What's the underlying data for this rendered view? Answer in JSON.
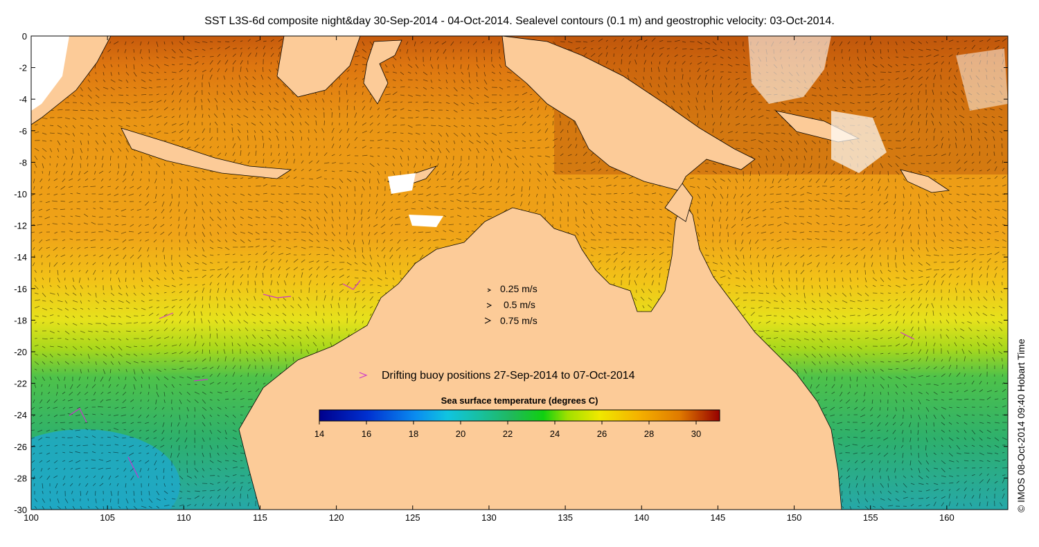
{
  "title": "SST L3S-6d composite night&day 30-Sep-2014 - 04-Oct-2014. Sealevel contours (0.1 m) and geostrophic velocity: 03-Oct-2014.",
  "credit": "© IMOS 08-Oct-2014 09:40 Hobart Time",
  "map": {
    "lon_range": [
      100,
      164
    ],
    "lat_range": [
      -30,
      0
    ],
    "x_ticks": [
      "100",
      "105",
      "110",
      "115",
      "120",
      "125",
      "130",
      "135",
      "140",
      "145",
      "150",
      "155",
      "160"
    ],
    "y_ticks": [
      "0",
      "-2",
      "-4",
      "-6",
      "-8",
      "-10",
      "-12",
      "-14",
      "-16",
      "-18",
      "-20",
      "-22",
      "-24",
      "-26",
      "-28",
      "-30"
    ],
    "land_color": "#fccb98",
    "no_data_color": "#ffffff"
  },
  "velocity_legend": {
    "items": [
      {
        "label": "0.25 m/s"
      },
      {
        "label": "0.5 m/s"
      },
      {
        "label": "0.75 m/s"
      }
    ]
  },
  "buoy_legend": {
    "label": "Drifting buoy positions 27-Sep-2014 to 07-Oct-2014",
    "color": "#cc33cc"
  },
  "colorbar": {
    "title": "Sea surface temperature (degrees C)",
    "min": 14,
    "max": 31,
    "ticks": [
      "14",
      "16",
      "18",
      "20",
      "22",
      "24",
      "26",
      "28",
      "30"
    ]
  }
}
